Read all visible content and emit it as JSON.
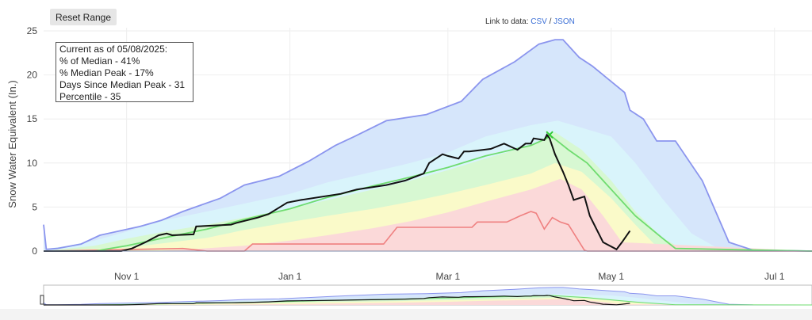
{
  "toolbar": {
    "reset_label": "Reset Range"
  },
  "links": {
    "prefix": "Link to data:",
    "csv": "CSV",
    "separator": "/",
    "json": "JSON"
  },
  "info": {
    "line1": "Current as of 05/08/2025:",
    "line2": "% of Median - 41%",
    "line3": "% Median Peak - 17%",
    "line4": "Days Since Median Peak - 31",
    "line5": "Percentile - 35"
  },
  "chart_data": {
    "type": "area",
    "ylabel": "Snow Water Equivalent (In.)",
    "xlabel": "",
    "x_start": "Oct 1",
    "x_end": "Jul 15",
    "xlim": [
      "Oct 1",
      "Jul 15"
    ],
    "ylim": [
      0,
      25
    ],
    "y_ticks": [
      0,
      5,
      10,
      15,
      20,
      25
    ],
    "x_ticks": [
      {
        "label": "Nov 1",
        "date": "Nov 1"
      },
      {
        "label": "Jan 1",
        "date": "Jan 1"
      },
      {
        "label": "Mar 1",
        "date": "Mar 1"
      },
      {
        "label": "May 1",
        "date": "May 1"
      },
      {
        "label": "Jul 1",
        "date": "Jul 1"
      }
    ],
    "grid": true,
    "colors": {
      "max_band": "#d6e6fb",
      "max_line": "#8b95ee",
      "p90_band": "#d9f4fb",
      "p70_band": "#d7f8d2",
      "p30_band": "#fafac9",
      "p10_band": "#fbd9d9",
      "min_line": "#ef8080",
      "median_line": "#6fdc6f",
      "current_line": "#111111"
    },
    "series": [
      {
        "key": "max",
        "x": [
          "Oct 1",
          "Oct 2",
          "Oct 6",
          "Oct 15",
          "Oct 22",
          "Nov 6",
          "Nov 14",
          "Nov 22",
          "Dec 6",
          "Dec 15",
          "Dec 28",
          "Jan 8",
          "Jan 18",
          "Jan 25",
          "Feb 6",
          "Feb 21",
          "Mar 6",
          "Mar 14",
          "Mar 26",
          "Apr 4",
          "Apr 10",
          "Apr 13",
          "Apr 19",
          "Apr 24",
          "Apr 28",
          "May 6",
          "May 8",
          "May 13",
          "May 18",
          "May 25",
          "Jun 4",
          "Jun 9",
          "Jun 14",
          "Jun 23",
          "Jul 15"
        ],
        "values": [
          3,
          0.2,
          0.3,
          0.8,
          1.8,
          2.8,
          3.5,
          4.5,
          6,
          7.5,
          8.5,
          10.2,
          12,
          13,
          14.8,
          15.5,
          17,
          19.5,
          21.5,
          23.5,
          24,
          24,
          22,
          21,
          20,
          18,
          16,
          15,
          12.5,
          12.5,
          8,
          4.5,
          1,
          0.1,
          0
        ]
      },
      {
        "key": "p90",
        "x": [
          "Oct 1",
          "Oct 10",
          "Oct 20",
          "Nov 1",
          "Nov 15",
          "Dec 1",
          "Dec 15",
          "Jan 1",
          "Jan 15",
          "Feb 1",
          "Feb 15",
          "Mar 1",
          "Mar 15",
          "Apr 1",
          "Apr 11",
          "Apr 20",
          "May 1",
          "May 10",
          "May 20",
          "May 31",
          "Jun 10",
          "Jul 15"
        ],
        "values": [
          0.2,
          0.6,
          1.2,
          2.2,
          3.5,
          4.5,
          5.4,
          6.5,
          7.8,
          9,
          10,
          11.2,
          13,
          14.3,
          14.8,
          14,
          13,
          10,
          6,
          2,
          0.3,
          0
        ]
      },
      {
        "key": "p70",
        "x": [
          "Oct 1",
          "Oct 20",
          "Nov 1",
          "Nov 15",
          "Dec 1",
          "Dec 15",
          "Jan 1",
          "Jan 15",
          "Feb 1",
          "Feb 15",
          "Mar 1",
          "Mar 15",
          "Apr 1",
          "Apr 10",
          "Apr 20",
          "May 1",
          "May 10",
          "May 20",
          "May 28",
          "Jul 15"
        ],
        "values": [
          0,
          0.6,
          1.4,
          2.2,
          3,
          3.8,
          4.8,
          5.8,
          7,
          8,
          9.2,
          10.5,
          12,
          13.5,
          11.5,
          8,
          4.5,
          1.5,
          0.2,
          0
        ]
      },
      {
        "key": "p30",
        "x": [
          "Oct 1",
          "Nov 1",
          "Nov 15",
          "Dec 1",
          "Dec 15",
          "Jan 1",
          "Jan 15",
          "Feb 1",
          "Feb 15",
          "Mar 1",
          "Mar 15",
          "Apr 1",
          "Apr 10",
          "Apr 20",
          "May 1",
          "May 10",
          "May 18",
          "Jul 15"
        ],
        "values": [
          0,
          0.4,
          0.9,
          1.5,
          2.4,
          3.3,
          4,
          4.8,
          5.6,
          6.5,
          7.5,
          8.8,
          10,
          9,
          6,
          3,
          0.5,
          0
        ]
      },
      {
        "key": "p10",
        "x": [
          "Oct 1",
          "Nov 10",
          "Nov 25",
          "Dec 15",
          "Jan 1",
          "Jan 15",
          "Feb 1",
          "Feb 15",
          "Mar 1",
          "Mar 15",
          "Apr 1",
          "Apr 12",
          "Apr 20",
          "Apr 28",
          "May 5",
          "Jul 15"
        ],
        "values": [
          0,
          0,
          0.2,
          0.6,
          1.2,
          1.8,
          2.6,
          3.4,
          4.4,
          5.6,
          7,
          8.2,
          7,
          4,
          1,
          0
        ]
      },
      {
        "key": "min",
        "x": [
          "Oct 1",
          "Nov 22",
          "Dec 1",
          "Dec 15",
          "Dec 18",
          "Feb 5",
          "Feb 10",
          "Mar 10",
          "Mar 12",
          "Mar 23",
          "Mar 28",
          "Apr 1",
          "Apr 3",
          "Apr 6",
          "Apr 9",
          "Apr 12",
          "Apr 15",
          "Apr 21",
          "Apr 22",
          "Jul 15"
        ],
        "values": [
          0,
          0.3,
          0,
          0,
          0.8,
          0.8,
          2.7,
          2.7,
          3.3,
          3.3,
          4,
          4.5,
          4.3,
          2.5,
          3.8,
          3.3,
          3,
          0.1,
          0,
          0
        ]
      },
      {
        "key": "median",
        "x": [
          "Oct 1",
          "Oct 20",
          "Nov 1",
          "Nov 15",
          "Dec 1",
          "Dec 15",
          "Jan 1",
          "Jan 15",
          "Feb 1",
          "Feb 15",
          "Mar 1",
          "Mar 15",
          "Apr 1",
          "Apr 7",
          "Apr 8",
          "Apr 15",
          "Apr 22",
          "May 1",
          "May 10",
          "May 20",
          "May 25",
          "Jul 15"
        ],
        "values": [
          0,
          0,
          0.6,
          1.5,
          2.5,
          3.6,
          4.8,
          6.1,
          7.4,
          8.4,
          9.5,
          10.8,
          12,
          12.8,
          13.2,
          11.5,
          10,
          7,
          4,
          1.5,
          0.3,
          0
        ]
      },
      {
        "key": "current",
        "x": [
          "Oct 1",
          "Oct 15",
          "Oct 30",
          "Nov 3",
          "Nov 8",
          "Nov 13",
          "Nov 16",
          "Nov 18",
          "Nov 26",
          "Nov 27",
          "Dec 10",
          "Dec 12",
          "Dec 20",
          "Dec 24",
          "Dec 31",
          "Jan 5",
          "Jan 20",
          "Jan 26",
          "Feb 6",
          "Feb 13",
          "Feb 20",
          "Feb 22",
          "Feb 27",
          "Mar 1",
          "Mar 5",
          "Mar 7",
          "Mar 9",
          "Mar 17",
          "Mar 22",
          "Mar 27",
          "Mar 30",
          "Apr 1",
          "Apr 2",
          "Apr 6",
          "Apr 7",
          "Apr 8",
          "Apr 10",
          "Apr 13",
          "Apr 15",
          "Apr 17",
          "Apr 21",
          "Apr 23",
          "Apr 28",
          "May 3",
          "May 5",
          "May 8"
        ],
        "values": [
          0,
          0,
          0,
          0.3,
          1,
          1.8,
          2,
          1.8,
          1.9,
          2.8,
          3,
          3.2,
          3.8,
          4.2,
          5.5,
          5.8,
          6.5,
          7,
          7.5,
          8,
          8.8,
          10,
          11,
          10.8,
          10.5,
          11.3,
          11.3,
          11.6,
          12.2,
          11.5,
          12.2,
          12.2,
          12.8,
          12.6,
          13.2,
          12.8,
          11,
          9,
          7.5,
          5.8,
          6.2,
          4,
          1,
          0.2,
          1,
          2.3
        ]
      }
    ]
  }
}
